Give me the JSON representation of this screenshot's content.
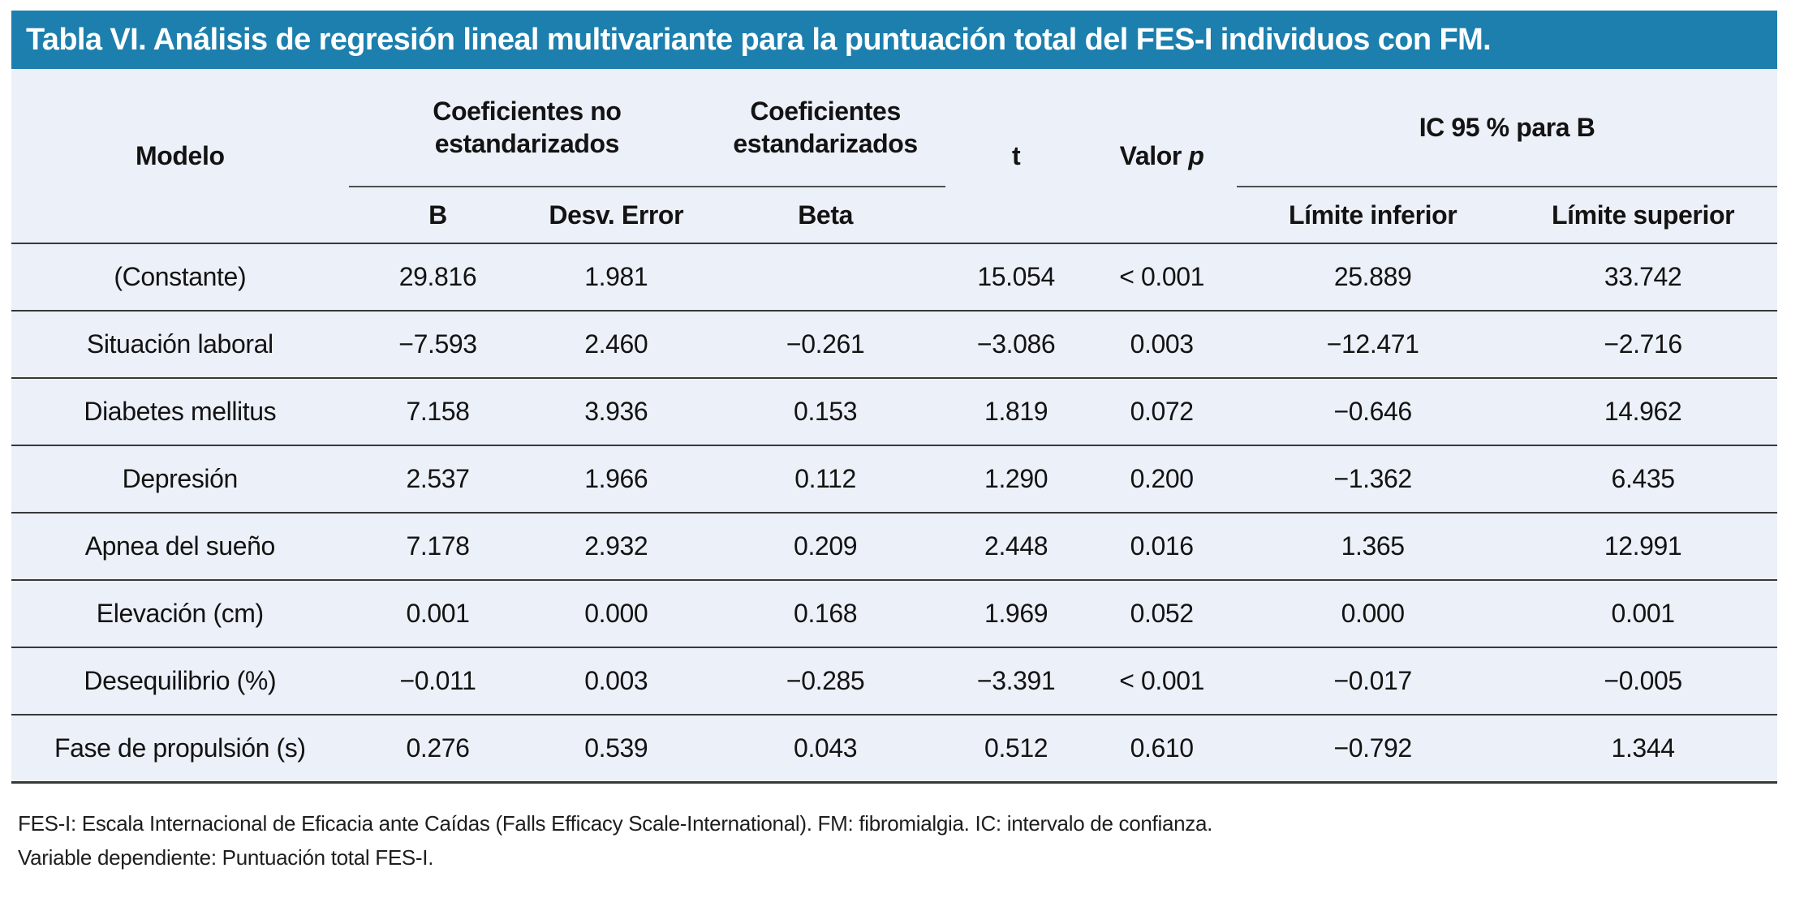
{
  "title": "Tabla VI. Análisis de regresión lineal multivariante para la puntuación total del FES-I individuos con FM.",
  "colors": {
    "header_bar_bg": "#1C7FAE",
    "table_body_bg": "#ECF0F8",
    "rule_dark": "#383838",
    "title_text": "#FFFFFF"
  },
  "table": {
    "col_modelo": "Modelo",
    "group_unstd": "Coeficientes no estandarizados",
    "group_std": "Coeficientes estandarizados",
    "col_t": "t",
    "col_p_prefix": "Valor",
    "col_p_italic": "p",
    "group_ic": "IC 95 % para B",
    "sub_b": "B",
    "sub_desv": "Desv. Error",
    "sub_beta": "Beta",
    "sub_li": "Límite inferior",
    "sub_ls": "Límite superior",
    "rows": [
      {
        "modelo": "(Constante)",
        "b": "29.816",
        "desv": "1.981",
        "beta": "",
        "t": "15.054",
        "p": "< 0.001",
        "li": "25.889",
        "ls": "33.742"
      },
      {
        "modelo": "Situación laboral",
        "b": "−7.593",
        "desv": "2.460",
        "beta": "−0.261",
        "t": "−3.086",
        "p": "0.003",
        "li": "−12.471",
        "ls": "−2.716"
      },
      {
        "modelo": "Diabetes mellitus",
        "b": "7.158",
        "desv": "3.936",
        "beta": "0.153",
        "t": "1.819",
        "p": "0.072",
        "li": "−0.646",
        "ls": "14.962"
      },
      {
        "modelo": "Depresión",
        "b": "2.537",
        "desv": "1.966",
        "beta": "0.112",
        "t": "1.290",
        "p": "0.200",
        "li": "−1.362",
        "ls": "6.435"
      },
      {
        "modelo": "Apnea del sueño",
        "b": "7.178",
        "desv": "2.932",
        "beta": "0.209",
        "t": "2.448",
        "p": "0.016",
        "li": "1.365",
        "ls": "12.991"
      },
      {
        "modelo": "Elevación (cm)",
        "b": "0.001",
        "desv": "0.000",
        "beta": "0.168",
        "t": "1.969",
        "p": "0.052",
        "li": "0.000",
        "ls": "0.001"
      },
      {
        "modelo": "Desequilibrio (%)",
        "b": "−0.011",
        "desv": "0.003",
        "beta": "−0.285",
        "t": "−3.391",
        "p": "< 0.001",
        "li": "−0.017",
        "ls": "−0.005"
      },
      {
        "modelo": "Fase de propulsión (s)",
        "b": "0.276",
        "desv": "0.539",
        "beta": "0.043",
        "t": "0.512",
        "p": "0.610",
        "li": "−0.792",
        "ls": "1.344"
      }
    ]
  },
  "footnotes": [
    "FES-I: Escala Internacional de Eficacia ante Caídas (Falls Efficacy Scale-International). FM: fibromialgia. IC: intervalo de confianza.",
    "Variable dependiente: Puntuación total FES-I."
  ]
}
